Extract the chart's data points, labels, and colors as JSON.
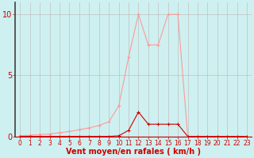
{
  "title": "",
  "xlabel": "Vent moyen/en rafales ( km/h )",
  "bg_color": "#cff0f0",
  "grid_color": "#c0c0c0",
  "line1_x": [
    0,
    1,
    2,
    3,
    4,
    5,
    6,
    7,
    8,
    9,
    10,
    11,
    12,
    13,
    14,
    15,
    16,
    17,
    18,
    19,
    20,
    21,
    22,
    23
  ],
  "line1_y": [
    0.05,
    0.1,
    0.15,
    0.2,
    0.3,
    0.4,
    0.55,
    0.7,
    0.9,
    1.2,
    2.5,
    6.5,
    10,
    7.5,
    7.5,
    10,
    10,
    0,
    0,
    0,
    0,
    0,
    0,
    0
  ],
  "line2_x": [
    0,
    1,
    2,
    3,
    4,
    5,
    6,
    7,
    8,
    9,
    10,
    11,
    12,
    13,
    14,
    15,
    16,
    17,
    18,
    19,
    20,
    21,
    22,
    23
  ],
  "line2_y": [
    0,
    0,
    0,
    0,
    0,
    0,
    0,
    0,
    0,
    0,
    0.05,
    0.5,
    2,
    1,
    1,
    1,
    1,
    0,
    0,
    0,
    0,
    0,
    0,
    0
  ],
  "line1_color": "#ff9999",
  "line2_color": "#cc0000",
  "ylim": [
    0,
    11
  ],
  "xlim": [
    -0.5,
    23.5
  ],
  "yticks": [
    0,
    5,
    10
  ],
  "xticks": [
    0,
    1,
    2,
    3,
    4,
    5,
    6,
    7,
    8,
    9,
    10,
    11,
    12,
    13,
    14,
    15,
    16,
    17,
    18,
    19,
    20,
    21,
    22,
    23
  ],
  "tick_color": "#cc0000",
  "axis_color": "#cc0000",
  "xlabel_color": "#cc0000",
  "xlabel_fontsize": 7.0,
  "ytick_fontsize": 7,
  "xtick_fontsize": 5.5,
  "left_spine_color": "#404040"
}
